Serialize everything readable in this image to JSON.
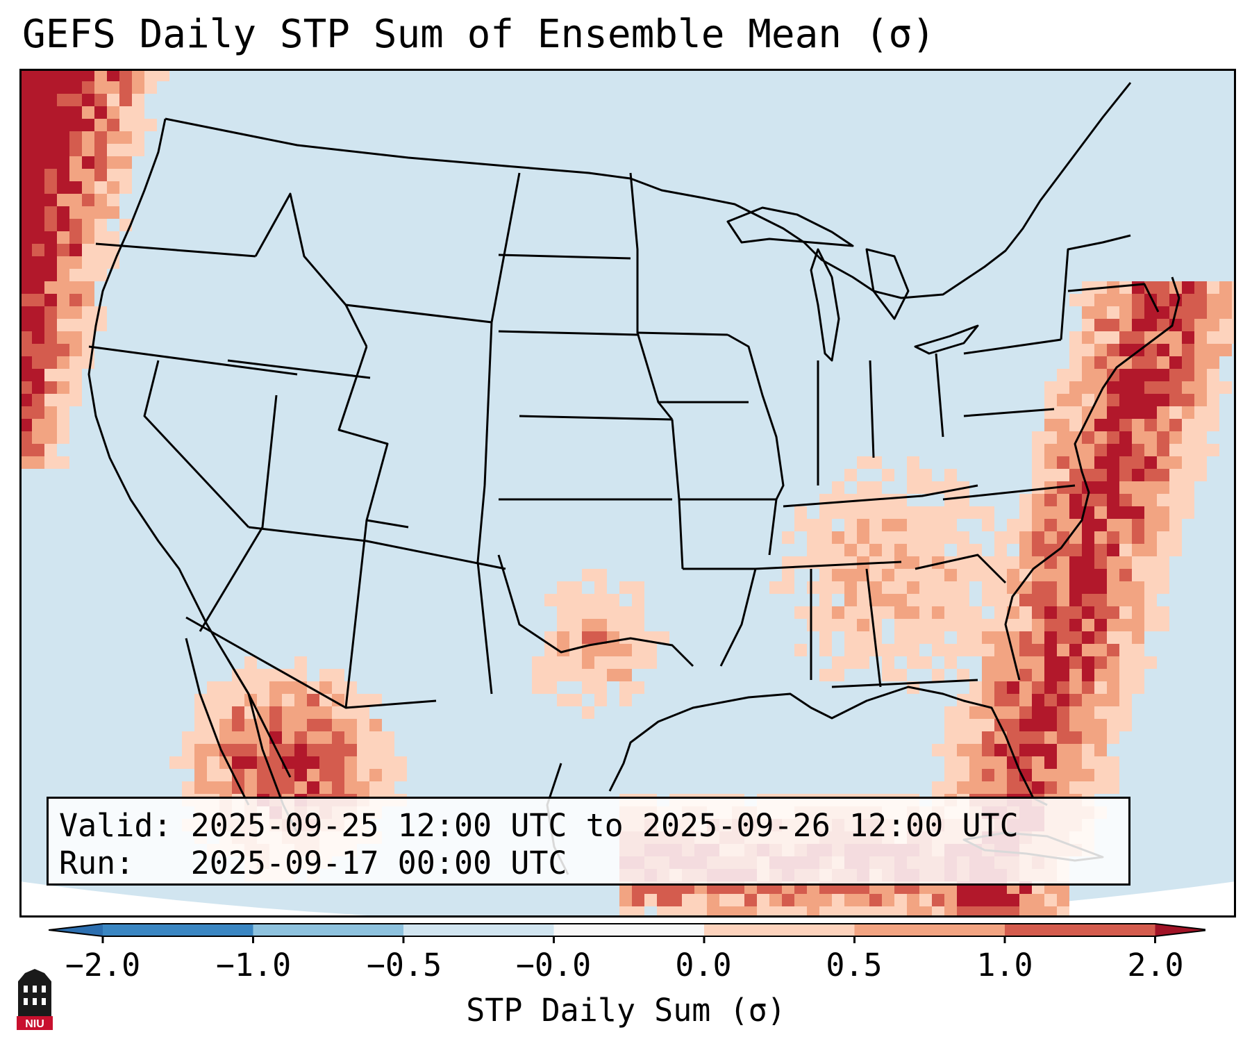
{
  "title": "GEFS Daily STP Sum of Ensemble Mean (σ)",
  "info": {
    "valid_label": "Valid:",
    "valid_value": "2025-09-25 12:00 UTC to 2025-09-26 12:00 UTC",
    "run_label": "Run:",
    "run_value": "2025-09-17 00:00 UTC"
  },
  "colorbar": {
    "label": "STP Daily Sum (σ)",
    "ticks": [
      "−2.0",
      "−1.0",
      "−0.5",
      "−0.0",
      "0.0",
      "0.5",
      "1.0",
      "2.0"
    ],
    "colors": [
      "#3a86c2",
      "#8ec2de",
      "#d1e5f0",
      "#f7f7f7",
      "#fdd3bd",
      "#f2a482",
      "#d45c4e",
      "#b2182b"
    ],
    "under_color": "#2c6fb0",
    "over_color": "#a11326"
  },
  "map": {
    "background_color": "#d1e5f0",
    "outside_color": "#ffffff"
  },
  "logo": {
    "text": "NIU",
    "color": "#c8102e"
  }
}
